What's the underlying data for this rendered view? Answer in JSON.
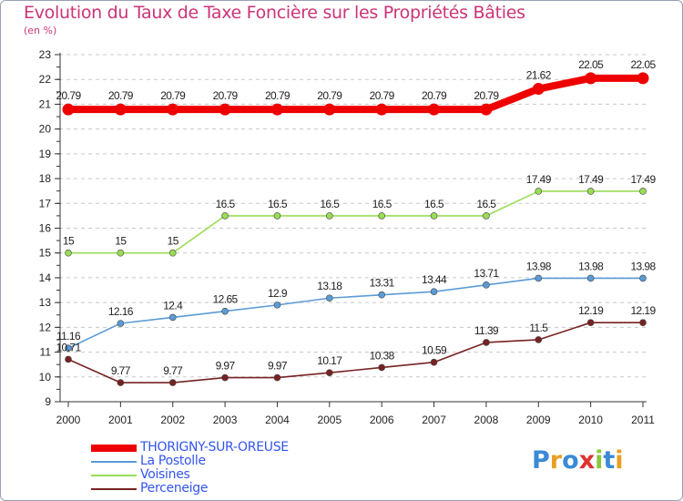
{
  "title": "Evolution du Taux de Taxe Foncière sur les Propriétés Bâties",
  "unit_label": "(en %)",
  "brand": "Proxiti",
  "brand_letters": [
    {
      "ch": "P",
      "color": "#3a8ad6"
    },
    {
      "ch": "r",
      "color": "#e8a020"
    },
    {
      "ch": "o",
      "color": "#3a8ad6"
    },
    {
      "ch": "x",
      "color": "#e03030"
    },
    {
      "ch": "i",
      "color": "#8bc63e"
    },
    {
      "ch": "t",
      "color": "#3a8ad6"
    },
    {
      "ch": "i",
      "color": "#e8a020"
    }
  ],
  "chart_data": {
    "type": "line",
    "title": "Evolution du Taux de Taxe Foncière sur les Propriétés Bâties",
    "ylabel": "(en %)",
    "x": [
      "2000",
      "2001",
      "2002",
      "2003",
      "2004",
      "2005",
      "2006",
      "2007",
      "2008",
      "2009",
      "2010",
      "2011"
    ],
    "ylim": [
      9,
      23
    ],
    "yticks": [
      9,
      10,
      11,
      12,
      13,
      14,
      15,
      16,
      17,
      18,
      19,
      20,
      21,
      22,
      23
    ],
    "grid": "horizontal dashed",
    "legend_position": "bottom-left",
    "series": [
      {
        "name": "THORIGNY-SUR-OREUSE",
        "color": "#ee0000",
        "style": "thick",
        "values": [
          20.79,
          20.79,
          20.79,
          20.79,
          20.79,
          20.79,
          20.79,
          20.79,
          20.79,
          21.62,
          22.05,
          22.05
        ],
        "labels": [
          "20.79",
          "20.79",
          "20.79",
          "20.79",
          "20.79",
          "20.79",
          "20.79",
          "20.79",
          "20.79",
          "21.62",
          "22.05",
          "22.05"
        ]
      },
      {
        "name": "La Postolle",
        "color": "#5b9bd5",
        "style": "thin",
        "values": [
          11.16,
          12.16,
          12.4,
          12.65,
          12.9,
          13.18,
          13.31,
          13.44,
          13.71,
          13.98,
          13.98,
          13.98
        ],
        "labels": [
          "11.16",
          "12.16",
          "12.4",
          "12.65",
          "12.9",
          "13.18",
          "13.31",
          "13.44",
          "13.71",
          "13.98",
          "13.98",
          "13.98"
        ]
      },
      {
        "name": "Voisines",
        "color": "#99dd55",
        "style": "thin",
        "values": [
          15,
          15,
          15,
          16.5,
          16.5,
          16.5,
          16.5,
          16.5,
          16.5,
          17.49,
          17.49,
          17.49
        ],
        "labels": [
          "15",
          "15",
          "15",
          "16.5",
          "16.5",
          "16.5",
          "16.5",
          "16.5",
          "16.5",
          "17.49",
          "17.49",
          "17.49"
        ]
      },
      {
        "name": "Perceneige",
        "color": "#772222",
        "style": "thin",
        "values": [
          10.71,
          9.77,
          9.77,
          9.97,
          9.97,
          10.17,
          10.38,
          10.59,
          11.39,
          11.5,
          12.19,
          12.19
        ],
        "labels": [
          "10.71",
          "9.77",
          "9.77",
          "9.97",
          "9.97",
          "10.17",
          "10.38",
          "10.59",
          "11.39",
          "11.5",
          "12.19",
          "12.19"
        ]
      }
    ]
  }
}
